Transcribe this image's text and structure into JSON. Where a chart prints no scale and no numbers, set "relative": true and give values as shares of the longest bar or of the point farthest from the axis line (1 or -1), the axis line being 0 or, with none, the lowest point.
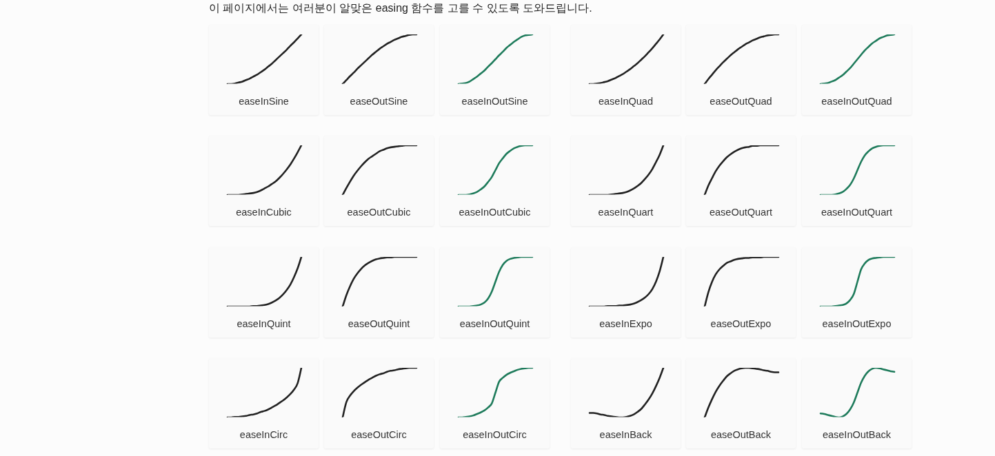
{
  "chart_data": [
    {
      "type": "other",
      "title": "이 페이지에서는 여러분이 알맞은 easing 함수를 고를 수 있도록 도와드립니다."
    },
    {
      "type": "line",
      "title": "easeInSine",
      "relative": true,
      "categories": [
        null,
        null,
        null,
        null,
        null,
        null,
        null,
        null,
        null,
        null,
        null,
        null,
        null,
        null,
        null,
        null,
        null,
        null,
        null,
        null,
        null
      ],
      "series": [
        {
          "color": "#222222",
          "values": [
            0,
            0,
            0.01,
            0.03,
            0.05,
            0.08,
            0.11,
            0.15,
            0.19,
            0.24,
            0.29,
            0.35,
            0.41,
            0.48,
            0.55,
            0.62,
            0.69,
            0.77,
            0.84,
            0.92,
            1
          ]
        }
      ]
    },
    {
      "type": "line",
      "title": "easeOutSine",
      "relative": true,
      "categories": [
        null,
        null,
        null,
        null,
        null,
        null,
        null,
        null,
        null,
        null,
        null,
        null,
        null,
        null,
        null,
        null,
        null,
        null,
        null,
        null,
        null
      ],
      "series": [
        {
          "color": "#222222",
          "values": [
            0,
            0.08,
            0.16,
            0.23,
            0.31,
            0.38,
            0.45,
            0.52,
            0.59,
            0.65,
            0.71,
            0.76,
            0.81,
            0.85,
            0.89,
            0.92,
            0.95,
            0.97,
            0.99,
            1,
            1
          ]
        }
      ]
    },
    {
      "type": "line",
      "title": "easeInOutSine",
      "relative": true,
      "categories": [
        null,
        null,
        null,
        null,
        null,
        null,
        null,
        null,
        null,
        null,
        null,
        null,
        null,
        null,
        null,
        null,
        null,
        null,
        null,
        null,
        null
      ],
      "series": [
        {
          "color": "#1e7b5b",
          "values": [
            0,
            0.01,
            0.02,
            0.05,
            0.1,
            0.15,
            0.21,
            0.27,
            0.35,
            0.42,
            0.5,
            0.58,
            0.65,
            0.73,
            0.79,
            0.85,
            0.9,
            0.95,
            0.98,
            0.99,
            1
          ]
        }
      ]
    },
    {
      "type": "line",
      "title": "easeInQuad",
      "relative": true,
      "categories": [
        null,
        null,
        null,
        null,
        null,
        null,
        null,
        null,
        null,
        null,
        null,
        null,
        null,
        null,
        null,
        null,
        null,
        null,
        null,
        null,
        null
      ],
      "series": [
        {
          "color": "#222222",
          "values": [
            0,
            0,
            0.01,
            0.02,
            0.04,
            0.06,
            0.09,
            0.12,
            0.16,
            0.2,
            0.25,
            0.3,
            0.36,
            0.42,
            0.49,
            0.56,
            0.64,
            0.72,
            0.81,
            0.9,
            1
          ]
        }
      ]
    },
    {
      "type": "line",
      "title": "easeOutQuad",
      "relative": true,
      "categories": [
        null,
        null,
        null,
        null,
        null,
        null,
        null,
        null,
        null,
        null,
        null,
        null,
        null,
        null,
        null,
        null,
        null,
        null,
        null,
        null,
        null
      ],
      "series": [
        {
          "color": "#222222",
          "values": [
            0,
            0.1,
            0.19,
            0.28,
            0.36,
            0.44,
            0.51,
            0.58,
            0.64,
            0.7,
            0.75,
            0.8,
            0.84,
            0.88,
            0.91,
            0.94,
            0.96,
            0.98,
            0.99,
            1,
            1
          ]
        }
      ]
    },
    {
      "type": "line",
      "title": "easeInOutQuad",
      "relative": true,
      "categories": [
        null,
        null,
        null,
        null,
        null,
        null,
        null,
        null,
        null,
        null,
        null,
        null,
        null,
        null,
        null,
        null,
        null,
        null,
        null,
        null,
        null
      ],
      "series": [
        {
          "color": "#1e7b5b",
          "values": [
            0,
            0.01,
            0.02,
            0.05,
            0.08,
            0.13,
            0.18,
            0.25,
            0.32,
            0.41,
            0.5,
            0.59,
            0.68,
            0.75,
            0.82,
            0.87,
            0.92,
            0.95,
            0.98,
            0.99,
            1
          ]
        }
      ]
    },
    {
      "type": "line",
      "title": "easeInCubic",
      "relative": true,
      "categories": [
        null,
        null,
        null,
        null,
        null,
        null,
        null,
        null,
        null,
        null,
        null,
        null,
        null,
        null,
        null,
        null,
        null,
        null,
        null,
        null,
        null
      ],
      "series": [
        {
          "color": "#222222",
          "values": [
            0,
            0,
            0,
            0,
            0.01,
            0.02,
            0.03,
            0.04,
            0.06,
            0.09,
            0.13,
            0.17,
            0.22,
            0.27,
            0.34,
            0.42,
            0.51,
            0.61,
            0.73,
            0.86,
            1
          ]
        }
      ]
    },
    {
      "type": "line",
      "title": "easeOutCubic",
      "relative": true,
      "categories": [
        null,
        null,
        null,
        null,
        null,
        null,
        null,
        null,
        null,
        null,
        null,
        null,
        null,
        null,
        null,
        null,
        null,
        null,
        null,
        null,
        null
      ],
      "series": [
        {
          "color": "#222222",
          "values": [
            0,
            0.14,
            0.27,
            0.39,
            0.49,
            0.58,
            0.66,
            0.73,
            0.78,
            0.83,
            0.88,
            0.91,
            0.94,
            0.96,
            0.97,
            0.98,
            0.99,
            1,
            1,
            1,
            1
          ]
        }
      ]
    },
    {
      "type": "line",
      "title": "easeInOutCubic",
      "relative": true,
      "categories": [
        null,
        null,
        null,
        null,
        null,
        null,
        null,
        null,
        null,
        null,
        null,
        null,
        null,
        null,
        null,
        null,
        null,
        null,
        null,
        null,
        null
      ],
      "series": [
        {
          "color": "#1e7b5b",
          "values": [
            0,
            0,
            0,
            0.01,
            0.03,
            0.06,
            0.11,
            0.17,
            0.26,
            0.36,
            0.5,
            0.64,
            0.74,
            0.83,
            0.89,
            0.94,
            0.97,
            0.99,
            1,
            1,
            1
          ]
        }
      ]
    },
    {
      "type": "line",
      "title": "easeInQuart",
      "relative": true,
      "categories": [
        null,
        null,
        null,
        null,
        null,
        null,
        null,
        null,
        null,
        null,
        null,
        null,
        null,
        null,
        null,
        null,
        null,
        null,
        null,
        null,
        null
      ],
      "series": [
        {
          "color": "#222222",
          "values": [
            0,
            0,
            0,
            0,
            0,
            0,
            0.01,
            0.02,
            0.03,
            0.04,
            0.06,
            0.09,
            0.13,
            0.18,
            0.24,
            0.32,
            0.41,
            0.52,
            0.66,
            0.81,
            1
          ]
        }
      ]
    },
    {
      "type": "line",
      "title": "easeOutQuart",
      "relative": true,
      "categories": [
        null,
        null,
        null,
        null,
        null,
        null,
        null,
        null,
        null,
        null,
        null,
        null,
        null,
        null,
        null,
        null,
        null,
        null,
        null,
        null,
        null
      ],
      "series": [
        {
          "color": "#222222",
          "values": [
            0,
            0.19,
            0.34,
            0.48,
            0.59,
            0.68,
            0.76,
            0.82,
            0.87,
            0.91,
            0.94,
            0.96,
            0.97,
            0.99,
            0.99,
            1,
            1,
            1,
            1,
            1,
            1
          ]
        }
      ]
    },
    {
      "type": "line",
      "title": "easeInOutQuart",
      "relative": true,
      "categories": [
        null,
        null,
        null,
        null,
        null,
        null,
        null,
        null,
        null,
        null,
        null,
        null,
        null,
        null,
        null,
        null,
        null,
        null,
        null,
        null,
        null
      ],
      "series": [
        {
          "color": "#1e7b5b",
          "values": [
            0,
            0,
            0,
            0,
            0.01,
            0.03,
            0.06,
            0.12,
            0.2,
            0.33,
            0.5,
            0.67,
            0.8,
            0.88,
            0.94,
            0.97,
            0.99,
            1,
            1,
            1,
            1
          ]
        }
      ]
    },
    {
      "type": "line",
      "title": "easeInQuint",
      "relative": true,
      "categories": [
        null,
        null,
        null,
        null,
        null,
        null,
        null,
        null,
        null,
        null,
        null,
        null,
        null,
        null,
        null,
        null,
        null,
        null,
        null,
        null,
        null
      ],
      "series": [
        {
          "color": "#222222",
          "values": [
            0,
            0,
            0,
            0,
            0,
            0,
            0,
            0.01,
            0.01,
            0.02,
            0.03,
            0.05,
            0.08,
            0.12,
            0.17,
            0.24,
            0.33,
            0.44,
            0.59,
            0.77,
            1
          ]
        }
      ]
    },
    {
      "type": "line",
      "title": "easeOutQuint",
      "relative": true,
      "categories": [
        null,
        null,
        null,
        null,
        null,
        null,
        null,
        null,
        null,
        null,
        null,
        null,
        null,
        null,
        null,
        null,
        null,
        null,
        null,
        null,
        null
      ],
      "series": [
        {
          "color": "#222222",
          "values": [
            0,
            0.23,
            0.41,
            0.56,
            0.67,
            0.76,
            0.83,
            0.88,
            0.92,
            0.95,
            0.97,
            0.98,
            0.99,
            0.99,
            1,
            1,
            1,
            1,
            1,
            1,
            1
          ]
        }
      ]
    },
    {
      "type": "line",
      "title": "easeInOutQuint",
      "relative": true,
      "categories": [
        null,
        null,
        null,
        null,
        null,
        null,
        null,
        null,
        null,
        null,
        null,
        null,
        null,
        null,
        null,
        null,
        null,
        null,
        null,
        null,
        null
      ],
      "series": [
        {
          "color": "#1e7b5b",
          "values": [
            0,
            0,
            0,
            0,
            0.01,
            0.02,
            0.04,
            0.08,
            0.16,
            0.3,
            0.5,
            0.7,
            0.84,
            0.92,
            0.96,
            0.98,
            0.99,
            1,
            1,
            1,
            1
          ]
        }
      ]
    },
    {
      "type": "line",
      "title": "easeInExpo",
      "relative": true,
      "categories": [
        null,
        null,
        null,
        null,
        null,
        null,
        null,
        null,
        null,
        null,
        null,
        null,
        null,
        null,
        null,
        null,
        null,
        null,
        null,
        null,
        null
      ],
      "series": [
        {
          "color": "#222222",
          "values": [
            0,
            0,
            0,
            0,
            0,
            0.01,
            0.01,
            0.01,
            0.02,
            0.02,
            0.03,
            0.04,
            0.06,
            0.09,
            0.13,
            0.18,
            0.25,
            0.35,
            0.5,
            0.71,
            1
          ]
        }
      ]
    },
    {
      "type": "line",
      "title": "easeOutExpo",
      "relative": true,
      "categories": [
        null,
        null,
        null,
        null,
        null,
        null,
        null,
        null,
        null,
        null,
        null,
        null,
        null,
        null,
        null,
        null,
        null,
        null,
        null,
        null,
        null
      ],
      "series": [
        {
          "color": "#222222",
          "values": [
            0,
            0.29,
            0.5,
            0.65,
            0.75,
            0.82,
            0.88,
            0.91,
            0.94,
            0.96,
            0.97,
            0.98,
            0.98,
            0.99,
            0.99,
            0.99,
            1,
            1,
            1,
            1,
            1
          ]
        }
      ]
    },
    {
      "type": "line",
      "title": "easeInOutExpo",
      "relative": true,
      "categories": [
        null,
        null,
        null,
        null,
        null,
        null,
        null,
        null,
        null,
        null,
        null,
        null,
        null,
        null,
        null,
        null,
        null,
        null,
        null,
        null,
        null
      ],
      "series": [
        {
          "color": "#1e7b5b",
          "values": [
            0,
            0,
            0,
            0,
            0.01,
            0.02,
            0.03,
            0.06,
            0.13,
            0.25,
            0.5,
            0.75,
            0.87,
            0.94,
            0.97,
            0.98,
            0.99,
            1,
            1,
            1,
            1
          ]
        }
      ]
    },
    {
      "type": "line",
      "title": "easeInCirc",
      "relative": true,
      "categories": [
        null,
        null,
        null,
        null,
        null,
        null,
        null,
        null,
        null,
        null,
        null,
        null,
        null,
        null,
        null,
        null,
        null,
        null,
        null,
        null,
        null
      ],
      "series": [
        {
          "color": "#222222",
          "values": [
            0,
            0,
            0.01,
            0.01,
            0.02,
            0.03,
            0.05,
            0.06,
            0.08,
            0.11,
            0.13,
            0.16,
            0.2,
            0.24,
            0.29,
            0.34,
            0.4,
            0.47,
            0.56,
            0.69,
            1
          ]
        }
      ]
    },
    {
      "type": "line",
      "title": "easeOutCirc",
      "relative": true,
      "categories": [
        null,
        null,
        null,
        null,
        null,
        null,
        null,
        null,
        null,
        null,
        null,
        null,
        null,
        null,
        null,
        null,
        null,
        null,
        null,
        null,
        null
      ],
      "series": [
        {
          "color": "#222222",
          "values": [
            0,
            0.31,
            0.44,
            0.53,
            0.6,
            0.66,
            0.71,
            0.76,
            0.8,
            0.84,
            0.87,
            0.89,
            0.92,
            0.94,
            0.95,
            0.97,
            0.98,
            0.99,
            1,
            1,
            1
          ]
        }
      ]
    },
    {
      "type": "line",
      "title": "easeInOutCirc",
      "relative": true,
      "categories": [
        null,
        null,
        null,
        null,
        null,
        null,
        null,
        null,
        null,
        null,
        null,
        null,
        null,
        null,
        null,
        null,
        null,
        null,
        null,
        null,
        null
      ],
      "series": [
        {
          "color": "#1e7b5b",
          "values": [
            0,
            0,
            0.01,
            0.02,
            0.04,
            0.07,
            0.1,
            0.14,
            0.2,
            0.28,
            0.5,
            0.72,
            0.8,
            0.86,
            0.9,
            0.93,
            0.96,
            0.98,
            0.99,
            1,
            1
          ]
        }
      ]
    },
    {
      "type": "line",
      "title": "easeInBack",
      "relative": true,
      "categories": [
        null,
        null,
        null,
        null,
        null,
        null,
        null,
        null,
        null,
        null,
        null,
        null,
        null,
        null,
        null,
        null,
        null,
        null,
        null,
        null,
        null
      ],
      "series": [
        {
          "color": "#222222",
          "values": [
            0.09,
            0.09,
            0.08,
            0.06,
            0.05,
            0.03,
            0.02,
            0.01,
            0,
            0,
            0.01,
            0.03,
            0.06,
            0.11,
            0.17,
            0.26,
            0.36,
            0.48,
            0.63,
            0.8,
            1
          ]
        }
      ]
    },
    {
      "type": "line",
      "title": "easeOutBack",
      "relative": true,
      "categories": [
        null,
        null,
        null,
        null,
        null,
        null,
        null,
        null,
        null,
        null,
        null,
        null,
        null,
        null,
        null,
        null,
        null,
        null,
        null,
        null,
        null
      ],
      "series": [
        {
          "color": "#222222",
          "values": [
            0,
            0.2,
            0.37,
            0.52,
            0.64,
            0.74,
            0.83,
            0.89,
            0.94,
            0.97,
            0.99,
            1,
            1,
            0.99,
            0.98,
            0.97,
            0.95,
            0.94,
            0.92,
            0.91,
            0.91
          ]
        }
      ]
    },
    {
      "type": "line",
      "title": "easeInOutBack",
      "relative": true,
      "categories": [
        null,
        null,
        null,
        null,
        null,
        null,
        null,
        null,
        null,
        null,
        null,
        null,
        null,
        null,
        null,
        null,
        null,
        null,
        null,
        null,
        null
      ],
      "series": [
        {
          "color": "#1e7b5b",
          "values": [
            0.08,
            0.07,
            0.05,
            0.03,
            0.01,
            0,
            0.02,
            0.07,
            0.16,
            0.3,
            0.5,
            0.7,
            0.84,
            0.93,
            0.98,
            1,
            0.99,
            0.97,
            0.95,
            0.93,
            0.92
          ]
        }
      ]
    }
  ]
}
